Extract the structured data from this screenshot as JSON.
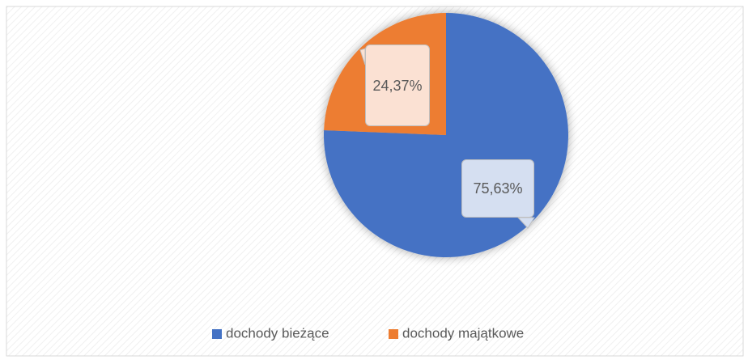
{
  "chart_data": {
    "type": "pie",
    "categories": [
      "dochody bieżące",
      "dochody majątkowe"
    ],
    "values": [
      75.63,
      24.37
    ],
    "value_labels": [
      "75,63%",
      "24,37%"
    ],
    "colors": [
      "#4472c4",
      "#ed7d31"
    ],
    "legend": "bottom"
  }
}
